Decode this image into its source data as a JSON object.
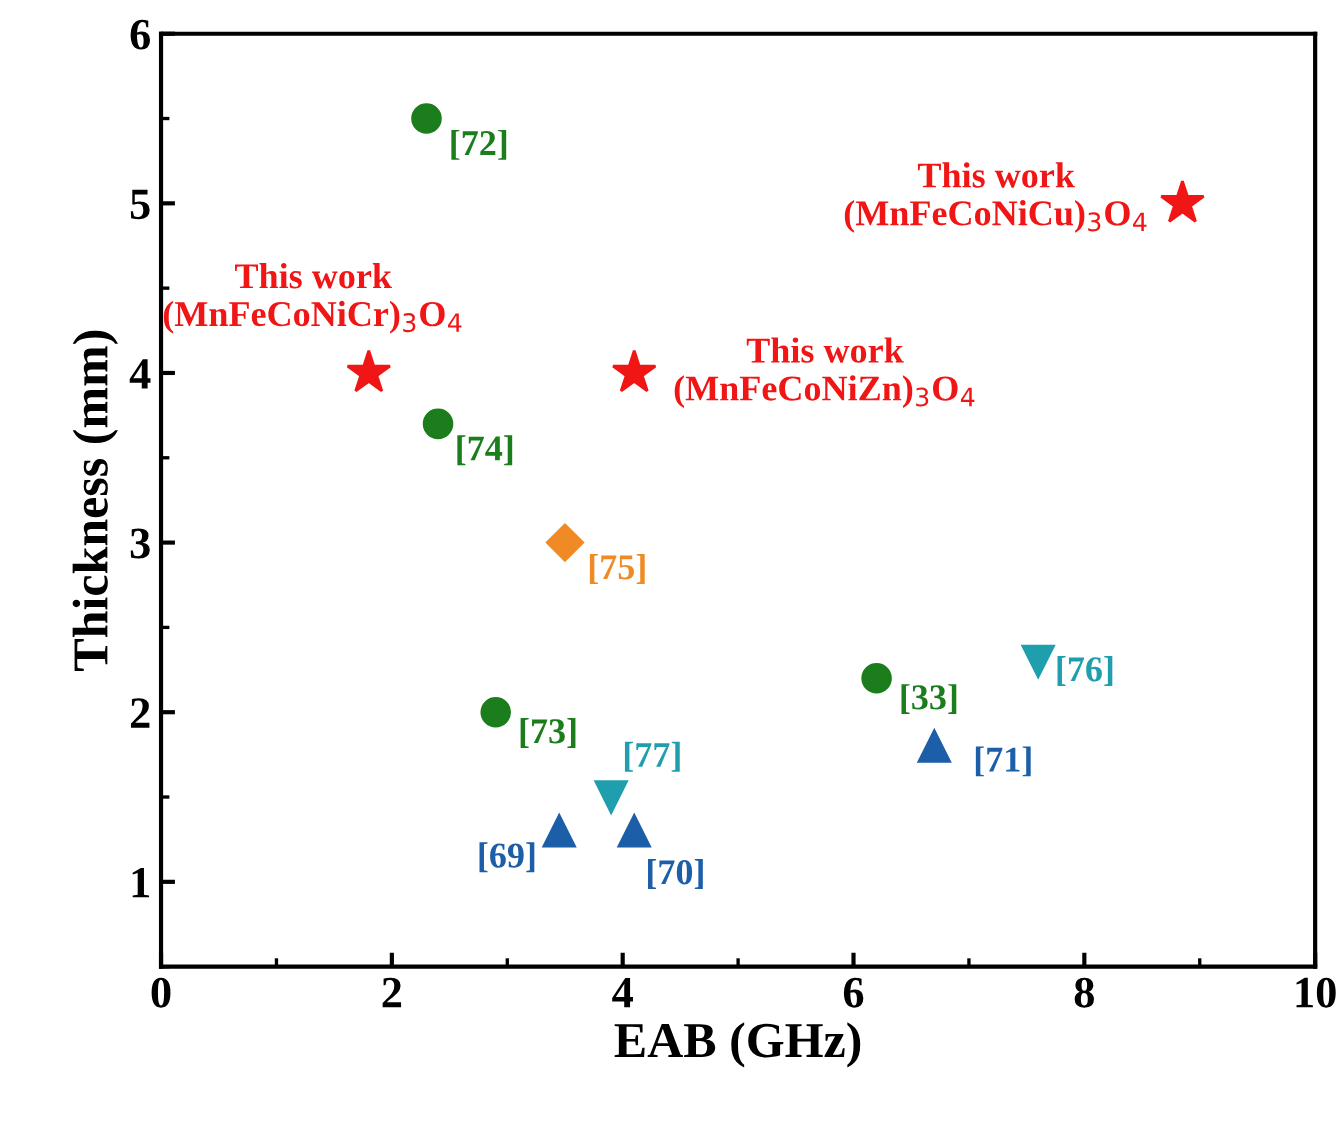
{
  "chart_data": {
    "type": "scatter",
    "xlabel": "EAB (GHz)",
    "ylabel": "Thickness (mm)",
    "xlim": [
      0,
      10
    ],
    "ylim": [
      0.5,
      6
    ],
    "xticks": [
      0,
      2,
      4,
      6,
      8,
      10
    ],
    "yticks": [
      1,
      2,
      3,
      4,
      5,
      6
    ],
    "grid": false,
    "legend": false,
    "series": [
      {
        "color": "#1b7d1b",
        "marker": "circle",
        "x": [
          2.3,
          2.4,
          2.9,
          6.2
        ],
        "values": [
          5.5,
          3.7,
          2.0,
          2.2
        ]
      },
      {
        "color": "#f08a24",
        "marker": "diamond",
        "x": [
          3.5
        ],
        "values": [
          3.0
        ]
      },
      {
        "color": "#1f9fae",
        "marker": "triangle_down",
        "x": [
          7.6,
          3.9
        ],
        "values": [
          2.3,
          1.5
        ]
      },
      {
        "color": "#1c5ea8",
        "marker": "triangle",
        "x": [
          6.7,
          3.45,
          4.1
        ],
        "values": [
          1.8,
          1.3,
          1.3
        ]
      },
      {
        "color": "#f01616",
        "marker": "star",
        "x": [
          1.8,
          4.1,
          8.85
        ],
        "values": [
          4.0,
          4.0,
          5.0
        ]
      }
    ],
    "annotations": [
      {
        "text": "[72]",
        "x": 2.3,
        "y": 5.5
      },
      {
        "text": "This work\n(MnFeCoNiCr)$_{3}$O$_{4}$",
        "x": 1.8,
        "y": 4.0
      },
      {
        "text": "This work\n(MnFeCoNiZn)$_{3}$O$_{4}$",
        "x": 4.1,
        "y": 4.0
      },
      {
        "text": "This work\n(MnFeCoNiCu)$_{3}$O$_{4}$",
        "x": 8.85,
        "y": 5.0
      },
      {
        "text": "[74]",
        "x": 2.4,
        "y": 3.7
      },
      {
        "text": "[75]",
        "x": 3.5,
        "y": 3.0
      },
      {
        "text": "[73]",
        "x": 2.9,
        "y": 2.0
      },
      {
        "text": "[33]",
        "x": 6.2,
        "y": 2.2
      },
      {
        "text": "[76]",
        "x": 7.6,
        "y": 2.3
      },
      {
        "text": "[71]",
        "x": 6.7,
        "y": 1.8
      },
      {
        "text": "[77]",
        "x": 3.9,
        "y": 1.5
      },
      {
        "text": "[69]",
        "x": 3.45,
        "y": 1.3
      },
      {
        "text": "[70]",
        "x": 4.1,
        "y": 1.3
      }
    ]
  }
}
